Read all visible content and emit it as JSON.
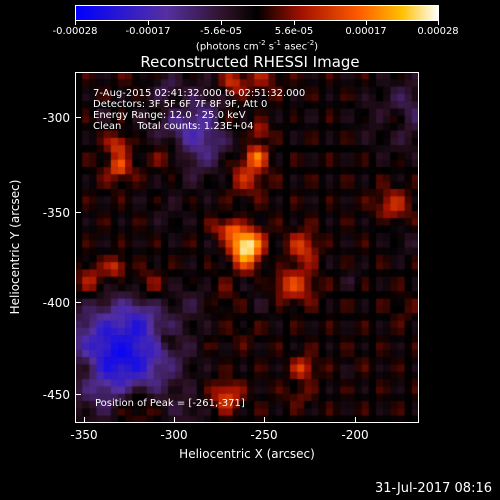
{
  "colorbar": {
    "tick_labels": [
      "-0.00028",
      "-0.00017",
      "-5.6e-05",
      "5.6e-05",
      "0.00017",
      "0.00028"
    ],
    "units_prefix": "(photons cm",
    "units_exp1": "-2",
    "units_mid": " s",
    "units_exp2": "-1",
    "units_mid2": " asec",
    "units_exp3": "-2",
    "units_suffix": ")"
  },
  "chart_data": {
    "type": "heatmap",
    "title": "Reconstructed RHESSI Image",
    "xlabel": "Heliocentric X (arcsec)",
    "ylabel": "Heliocentric Y (arcsec)",
    "xlim": [
      -355,
      -165
    ],
    "ylim": [
      -468,
      -277
    ],
    "xticks": [
      -350,
      -300,
      -250,
      -200
    ],
    "yticks": [
      -300,
      -350,
      -400,
      -450
    ],
    "xtick_labels": [
      "-350",
      "-300",
      "-250",
      "-200"
    ],
    "ytick_labels": [
      "-300",
      "-350",
      "-400",
      "-450"
    ],
    "colorscale_range": [
      -0.00028,
      0.00028
    ],
    "peak": [
      -261,
      -371
    ],
    "annotations": [
      "7-Aug-2015 02:41:32.000 to 02:51:32.000",
      "Detectors: 3F 5F 6F 7F 8F 9F, Att 0",
      "Energy Range: 12.0 - 25.0 keV",
      "Clean     Total counts: 1.23E+04"
    ],
    "peak_label": "Position of Peak = [-261,-371]"
  },
  "footer": "31-Jul-2017 08:16"
}
